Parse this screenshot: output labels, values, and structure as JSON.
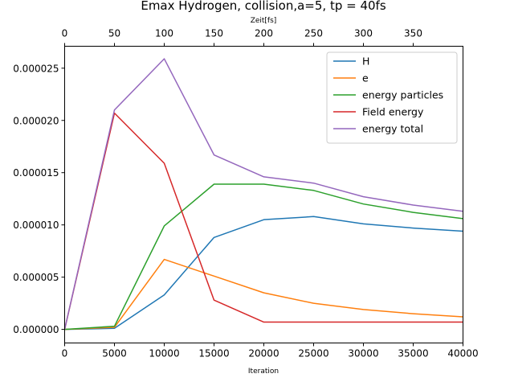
{
  "chart_data": {
    "type": "line",
    "title": "Emax Hydrogen, collision,a=5, tp = 40fs",
    "xlabel": "Iteration",
    "x2label": "Zeit[fs]",
    "ylabel": "",
    "x": [
      0,
      5000,
      10000,
      15000,
      20000,
      25000,
      30000,
      35000,
      40000
    ],
    "xlim": [
      0,
      40000
    ],
    "ylim": [
      -1.3e-06,
      2.71e-05
    ],
    "x_ticks": [
      0,
      5000,
      10000,
      15000,
      20000,
      25000,
      30000,
      35000,
      40000
    ],
    "x_tick_labels": [
      "0",
      "5000",
      "10000",
      "15000",
      "20000",
      "25000",
      "30000",
      "35000",
      "40000"
    ],
    "x2_ticks": [
      0,
      50,
      100,
      150,
      200,
      250,
      300,
      350
    ],
    "x2_tick_labels": [
      "0",
      "50",
      "100",
      "150",
      "200",
      "250",
      "300",
      "350"
    ],
    "x2_per_x": 0.01,
    "y_ticks": [
      0,
      5e-06,
      1e-05,
      1.5e-05,
      2e-05,
      2.5e-05
    ],
    "y_tick_labels": [
      "0.000000",
      "0.000005",
      "0.000010",
      "0.000015",
      "0.000020",
      "0.000025"
    ],
    "grid": false,
    "legend_position": "top-right",
    "series": [
      {
        "name": "H",
        "color": "#1f77b4",
        "values": [
          0,
          1e-07,
          3.3e-06,
          8.8e-06,
          1.05e-05,
          1.08e-05,
          1.01e-05,
          9.7e-06,
          9.4e-06
        ]
      },
      {
        "name": "e",
        "color": "#ff7f0e",
        "values": [
          0,
          2e-07,
          6.7e-06,
          5.1e-06,
          3.5e-06,
          2.5e-06,
          1.9e-06,
          1.5e-06,
          1.2e-06
        ]
      },
      {
        "name": "energy particles",
        "color": "#2ca02c",
        "values": [
          0,
          3e-07,
          9.9e-06,
          1.39e-05,
          1.39e-05,
          1.33e-05,
          1.2e-05,
          1.12e-05,
          1.06e-05
        ]
      },
      {
        "name": "Field energy",
        "color": "#d62728",
        "values": [
          0,
          2.07e-05,
          1.59e-05,
          2.8e-06,
          7e-07,
          7e-07,
          7e-07,
          7e-07,
          7e-07
        ]
      },
      {
        "name": "energy total",
        "color": "#9467bd",
        "values": [
          0,
          2.1e-05,
          2.59e-05,
          1.67e-05,
          1.46e-05,
          1.4e-05,
          1.27e-05,
          1.19e-05,
          1.13e-05
        ]
      }
    ]
  }
}
